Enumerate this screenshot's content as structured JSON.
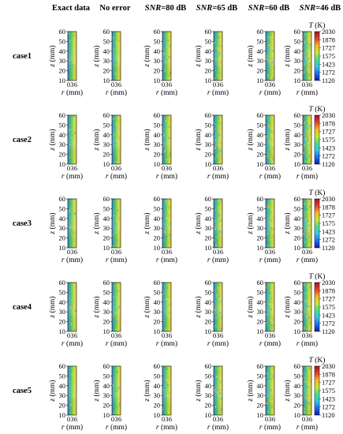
{
  "chart_data": {
    "type": "heatmap",
    "columns": [
      {
        "plain": "Exact data",
        "italic": "",
        "suffix": ""
      },
      {
        "plain": "No error",
        "italic": "",
        "suffix": ""
      },
      {
        "plain": "",
        "italic": "SNR",
        "suffix": "=80 dB"
      },
      {
        "plain": "",
        "italic": "SNR",
        "suffix": "=65 dB"
      },
      {
        "plain": "",
        "italic": "SNR",
        "suffix": "=60 dB"
      },
      {
        "plain": "",
        "italic": "SNR",
        "suffix": "=46 dB"
      }
    ],
    "rows": [
      "case1",
      "case2",
      "case3",
      "case4",
      "case5"
    ],
    "y_axis": {
      "label_var": "z",
      "label_unit": " (mm)",
      "ticks": [
        "60",
        "50",
        "40",
        "30",
        "20",
        "10"
      ],
      "range": [
        10,
        60
      ]
    },
    "x_axis": {
      "label_var": "r",
      "label_unit": " (mm)",
      "ticks": [
        "0",
        "3",
        "6"
      ],
      "range": [
        0,
        6
      ]
    },
    "colorbar": {
      "title_var": "T",
      "title_unit": " (K)",
      "ticks": [
        "2030",
        "1878",
        "1727",
        "1575",
        "1423",
        "1272",
        "1120"
      ],
      "range": [
        1120,
        2030
      ],
      "colors": [
        "#0a1e9c",
        "#1f6ff2",
        "#35c7e8",
        "#49e08c",
        "#c8e83a",
        "#f7b52b",
        "#e4402a",
        "#a0122a"
      ]
    }
  }
}
